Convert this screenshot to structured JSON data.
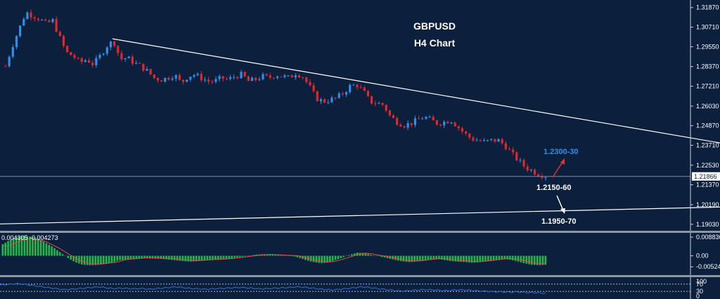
{
  "chart_data": {
    "type": "candlestick",
    "title": "GBPUSD",
    "subtitle": "H4 Chart",
    "price_axis": {
      "ticks": [
        "1.31870",
        "1.30710",
        "1.29550",
        "1.28370",
        "1.27210",
        "1.26030",
        "1.24870",
        "1.23710",
        "1.22530",
        "1.21370",
        "1.20190",
        "1.19030"
      ],
      "ylim": [
        1.1873,
        1.3215
      ],
      "current_price": "1.21866"
    },
    "price_path": [
      1.284,
      1.296,
      1.306,
      1.316,
      1.314,
      1.312,
      1.309,
      1.311,
      1.301,
      1.292,
      1.29,
      1.286,
      1.288,
      1.285,
      1.29,
      1.296,
      1.299,
      1.288,
      1.289,
      1.286,
      1.284,
      1.281,
      1.277,
      1.276,
      1.277,
      1.279,
      1.274,
      1.278,
      1.279,
      1.277,
      1.275,
      1.275,
      1.277,
      1.276,
      1.278,
      1.279,
      1.275,
      1.276,
      1.278,
      1.277,
      1.279,
      1.278,
      1.277,
      1.28,
      1.278,
      1.272,
      1.265,
      1.263,
      1.264,
      1.265,
      1.268,
      1.272,
      1.273,
      1.269,
      1.263,
      1.262,
      1.261,
      1.254,
      1.251,
      1.249,
      1.25,
      1.252,
      1.254,
      1.252,
      1.25,
      1.251,
      1.252,
      1.248,
      1.244,
      1.241,
      1.24,
      1.239,
      1.24,
      1.24,
      1.237,
      1.232,
      1.228,
      1.224,
      1.222,
      1.22,
      1.219
    ],
    "annotations": [
      {
        "label": "1.2300-30",
        "color": "#2f8fe8",
        "price": 1.2335
      },
      {
        "label": "1.2150-60",
        "color": "#ffffff",
        "price": 1.214
      },
      {
        "label": "1.1950-70",
        "color": "#ffffff",
        "price": 1.1912
      }
    ],
    "trendlines": [
      {
        "name": "resistance",
        "from": [
          0.158,
          1.3002
        ],
        "to": [
          1.0,
          1.2385
        ]
      },
      {
        "name": "support",
        "from": [
          0.0,
          1.1905
        ],
        "to": [
          1.0,
          1.2005
        ]
      }
    ],
    "macd": {
      "header": "0.004305 -0.004273",
      "ticks": [
        "0.008836",
        "0.00",
        "-0.00524"
      ],
      "ylim": [
        -0.0085,
        0.0102
      ],
      "values": [
        0.0055,
        0.0075,
        0.009,
        0.0095,
        0.009,
        0.008,
        0.006,
        0.004,
        0.0015,
        -0.001,
        -0.003,
        -0.0042,
        -0.0045,
        -0.0044,
        -0.004,
        -0.0035,
        -0.0022,
        -0.0018,
        -0.0015,
        -0.0012,
        -0.0012,
        -0.0013,
        -0.0015,
        -0.0018,
        -0.0022,
        -0.0025,
        -0.0028,
        -0.0025,
        -0.0022,
        -0.002,
        -0.0018,
        -0.0015,
        -0.001,
        -0.0005,
        0.0,
        0.0005,
        0.0008,
        0.0006,
        0.0004,
        0.0002,
        0.0,
        -0.001,
        -0.0022,
        -0.003,
        -0.0035,
        -0.0032,
        -0.002,
        -0.0008,
        0.0005,
        0.0015,
        0.0012,
        0.0004,
        -0.0002,
        -0.001,
        -0.0018,
        -0.0025,
        -0.003,
        -0.0028,
        -0.0022,
        -0.0018,
        -0.0015,
        -0.002,
        -0.0025,
        -0.0028,
        -0.003,
        -0.0033,
        -0.003,
        -0.0025,
        -0.002,
        -0.0015,
        -0.0018,
        -0.0025,
        -0.0035,
        -0.0042,
        -0.0045,
        -0.0043
      ]
    },
    "rsi": {
      "ticks": [
        "100",
        "70",
        "30",
        "0"
      ],
      "levels": [
        70,
        30
      ],
      "ylim": [
        0,
        100
      ],
      "values": [
        65,
        68,
        72,
        70,
        66,
        60,
        55,
        50,
        45,
        40,
        42,
        45,
        48,
        52,
        55,
        50,
        45,
        48,
        46,
        44,
        46,
        42,
        45,
        48,
        52,
        55,
        50,
        46,
        44,
        42,
        44,
        46,
        48,
        50,
        52,
        49,
        46,
        44,
        46,
        48,
        50,
        52,
        55,
        52,
        48,
        44,
        40,
        38,
        42,
        46,
        50,
        55,
        52,
        47,
        42,
        38,
        34,
        32,
        35,
        38,
        40,
        38,
        36,
        34,
        37,
        39,
        37,
        34,
        32,
        30,
        28,
        27,
        26,
        28,
        25,
        23,
        22,
        20
      ]
    }
  }
}
